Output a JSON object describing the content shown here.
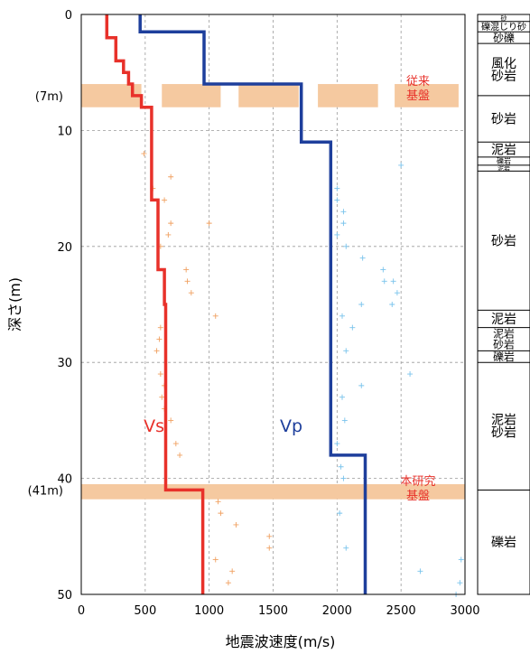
{
  "chart_data": {
    "type": "line",
    "xlabel": "地震波速度(m/s)",
    "ylabel": "深さ(m)",
    "xlim": [
      0,
      3000
    ],
    "ylim": [
      0,
      50
    ],
    "y_inverted": true,
    "grid": true,
    "x_ticks": [
      "0",
      "500",
      "1000",
      "1500",
      "2000",
      "2500",
      "3000"
    ],
    "y_ticks": [
      "0",
      "10",
      "20",
      "30",
      "40",
      "50"
    ],
    "extra_y_labels": [
      {
        "depth": 7,
        "text": "(7m)"
      },
      {
        "depth": 41,
        "text": "(41m)"
      }
    ],
    "series": [
      {
        "name": "Vs",
        "color": "#e8312a",
        "points": [
          [
            200,
            0
          ],
          [
            200,
            2
          ],
          [
            270,
            2
          ],
          [
            270,
            4
          ],
          [
            330,
            4
          ],
          [
            330,
            5
          ],
          [
            370,
            5
          ],
          [
            370,
            6
          ],
          [
            400,
            6
          ],
          [
            400,
            7
          ],
          [
            470,
            7
          ],
          [
            470,
            8
          ],
          [
            550,
            8
          ],
          [
            550,
            16
          ],
          [
            600,
            16
          ],
          [
            600,
            22
          ],
          [
            650,
            22
          ],
          [
            650,
            25
          ],
          [
            660,
            25
          ],
          [
            660,
            41
          ],
          [
            950,
            41
          ],
          [
            950,
            50
          ]
        ]
      },
      {
        "name": "Vp",
        "color": "#1e3f9c",
        "points": [
          [
            460,
            0
          ],
          [
            460,
            1.5
          ],
          [
            960,
            1.5
          ],
          [
            960,
            6
          ],
          [
            1720,
            6
          ],
          [
            1720,
            11
          ],
          [
            1950,
            11
          ],
          [
            1950,
            38
          ],
          [
            2220,
            38
          ],
          [
            2220,
            50
          ]
        ]
      }
    ],
    "scatter_vs": {
      "color": "#f0a060",
      "points": [
        [
          490,
          12
        ],
        [
          560,
          15
        ],
        [
          700,
          14
        ],
        [
          650,
          16
        ],
        [
          700,
          18
        ],
        [
          1000,
          18
        ],
        [
          680,
          19
        ],
        [
          620,
          20
        ],
        [
          820,
          22
        ],
        [
          830,
          23
        ],
        [
          860,
          24
        ],
        [
          1050,
          26
        ],
        [
          620,
          27
        ],
        [
          610,
          28
        ],
        [
          590,
          29
        ],
        [
          620,
          31
        ],
        [
          650,
          32
        ],
        [
          630,
          33
        ],
        [
          650,
          34
        ],
        [
          700,
          35
        ],
        [
          740,
          37
        ],
        [
          770,
          38
        ],
        [
          1070,
          42
        ],
        [
          1090,
          43
        ],
        [
          1210,
          44
        ],
        [
          1470,
          45
        ],
        [
          1470,
          46
        ],
        [
          1050,
          47
        ],
        [
          1180,
          48
        ],
        [
          1150,
          49
        ]
      ]
    },
    "scatter_vp": {
      "color": "#79c3ec",
      "points": [
        [
          2500,
          13
        ],
        [
          2000,
          15
        ],
        [
          2000,
          16
        ],
        [
          2050,
          17
        ],
        [
          2050,
          18
        ],
        [
          2000,
          19
        ],
        [
          2070,
          20
        ],
        [
          2200,
          21
        ],
        [
          2360,
          22
        ],
        [
          2370,
          23
        ],
        [
          2440,
          23
        ],
        [
          2470,
          24
        ],
        [
          2190,
          25
        ],
        [
          2430,
          25
        ],
        [
          2040,
          26
        ],
        [
          2120,
          27
        ],
        [
          2070,
          29
        ],
        [
          2570,
          31
        ],
        [
          2190,
          32
        ],
        [
          2040,
          33
        ],
        [
          2060,
          35
        ],
        [
          2000,
          37
        ],
        [
          2030,
          39
        ],
        [
          2050,
          40
        ],
        [
          2020,
          43
        ],
        [
          2070,
          46
        ],
        [
          2650,
          48
        ],
        [
          2970,
          47
        ],
        [
          2960,
          49
        ],
        [
          2930,
          50
        ]
      ]
    },
    "bands": [
      {
        "top": 6,
        "bottom": 8,
        "segments": [
          [
            0,
            470
          ],
          [
            630,
            1090
          ],
          [
            1230,
            1700
          ],
          [
            1850,
            2320
          ],
          [
            2450,
            2950
          ]
        ],
        "label": "従来\n基盤"
      },
      {
        "top": 40.5,
        "bottom": 41.8,
        "segments": [
          [
            0,
            3000
          ]
        ],
        "label": "本研究\n基盤"
      }
    ],
    "series_labels": [
      {
        "text": "Vs",
        "x": 650,
        "y": 36
      },
      {
        "text": "Vp",
        "x": 1730,
        "y": 36
      }
    ],
    "geology": [
      {
        "top": 0,
        "bottom": 0.6,
        "text": "砂"
      },
      {
        "top": 0.6,
        "bottom": 1.5,
        "text": "礫混じり砂"
      },
      {
        "top": 1.5,
        "bottom": 2.5,
        "text": "砂礫"
      },
      {
        "top": 2.5,
        "bottom": 7,
        "text": "風化\n砂岩"
      },
      {
        "top": 7,
        "bottom": 11,
        "text": "砂岩"
      },
      {
        "top": 11,
        "bottom": 12.3,
        "text": "泥岩"
      },
      {
        "top": 12.3,
        "bottom": 13,
        "text": "礫岩"
      },
      {
        "top": 13,
        "bottom": 13.5,
        "text": "泥岩"
      },
      {
        "top": 13.5,
        "bottom": 25.5,
        "text": "砂岩"
      },
      {
        "top": 25.5,
        "bottom": 27,
        "text": "泥岩"
      },
      {
        "top": 27,
        "bottom": 29,
        "text": "泥岩\n砂岩"
      },
      {
        "top": 29,
        "bottom": 30,
        "text": "礫岩"
      },
      {
        "top": 30,
        "bottom": 41,
        "text": "泥岩\n砂岩"
      },
      {
        "top": 41,
        "bottom": 50,
        "text": "礫岩"
      }
    ],
    "colors": {
      "band": "#f5c9a0",
      "band_label": "#e8312a",
      "grid": "#9a9a9a"
    }
  }
}
